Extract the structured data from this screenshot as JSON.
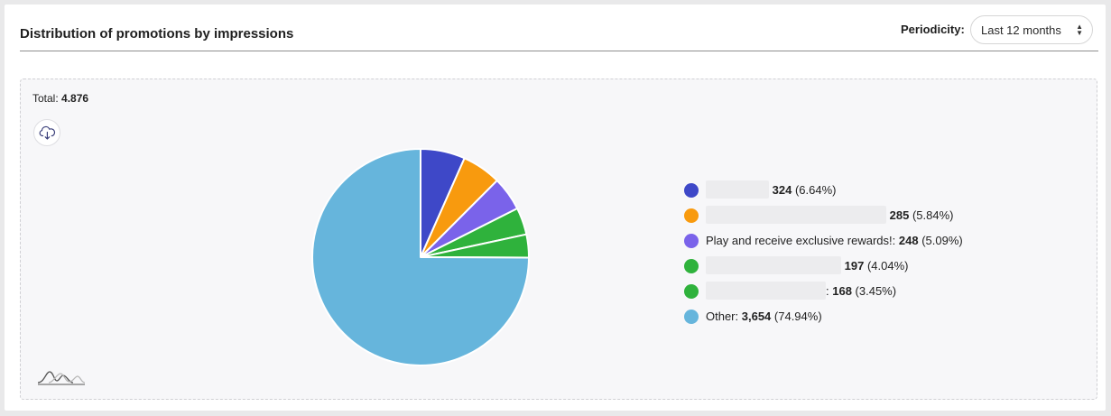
{
  "header": {
    "title": "Distribution of promotions by impressions",
    "periodicity_label": "Periodicity:",
    "periodicity_value": "Last 12 months"
  },
  "summary": {
    "total_label": "Total:",
    "total_value": "4.876"
  },
  "icons": {
    "download": "cloud-download-icon",
    "logo": "wave-logo-icon",
    "select_arrows": "sort-arrows-icon"
  },
  "chart_data": {
    "type": "pie",
    "total": 4876,
    "start_angle_deg": 0,
    "slices": [
      {
        "name": "",
        "value": 324,
        "percent": 6.64,
        "value_label": "324",
        "percent_label": "(6.64%)",
        "color": "#3e48c8"
      },
      {
        "name": "",
        "value": 285,
        "percent": 5.84,
        "value_label": "285",
        "percent_label": "(5.84%)",
        "color": "#f89a0e"
      },
      {
        "name": "Play and receive exclusive rewards!:",
        "value": 248,
        "percent": 5.09,
        "value_label": "248",
        "percent_label": "(5.09%)",
        "color": "#7a63ea"
      },
      {
        "name": "",
        "value": 197,
        "percent": 4.04,
        "value_label": "197",
        "percent_label": "(4.04%)",
        "color": "#2fb23c"
      },
      {
        "name": "",
        "value": 168,
        "percent": 3.45,
        "value_label": "168",
        "percent_label": "(3.45%)",
        "color": "#2fb23c",
        "suffix": ":"
      },
      {
        "name": "Other:",
        "value": 3654,
        "percent": 74.94,
        "value_label": "3,654",
        "percent_label": "(74.94%)",
        "color": "#66b5dc"
      }
    ]
  }
}
